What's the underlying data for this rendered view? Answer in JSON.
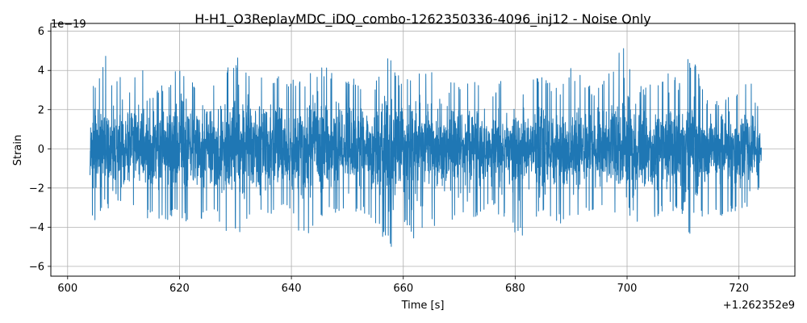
{
  "chart_data": {
    "type": "line",
    "title": "H-H1_O3ReplayMDC_iDQ_combo-1262350336-4096_inj12 - Noise Only",
    "xlabel": "Time [s]",
    "ylabel": "Strain",
    "x_offset_label": "+1.262352e9",
    "y_exponent_label": "1e−19",
    "xlim": [
      597,
      730
    ],
    "ylim": [
      -6.5,
      6.4
    ],
    "xticks": [
      600,
      620,
      640,
      660,
      680,
      700,
      720
    ],
    "xtick_labels": [
      "600",
      "620",
      "640",
      "660",
      "680",
      "700",
      "720"
    ],
    "yticks": [
      -6,
      -4,
      -2,
      0,
      2,
      4,
      6
    ],
    "ytick_labels": [
      "−6",
      "−4",
      "−2",
      "0",
      "2",
      "4",
      "6"
    ],
    "grid": true,
    "line_color": "#1f77b4",
    "x_range": [
      604,
      724
    ],
    "envelope": {
      "x": [
        604,
        604.5,
        605,
        606,
        606.8,
        607.5,
        609,
        611,
        613,
        614,
        617,
        620,
        622,
        626,
        628,
        630,
        633,
        636,
        638,
        640,
        642,
        646,
        650,
        654,
        656,
        657.4,
        658,
        660,
        662,
        665,
        666,
        669,
        670,
        673,
        676,
        679,
        680,
        682,
        684,
        688,
        690,
        694,
        697,
        699,
        701,
        703,
        706,
        708,
        710,
        711,
        712,
        714,
        717,
        720,
        722,
        723,
        724
      ],
      "upper": [
        1.6,
        3.2,
        3.7,
        4.4,
        5.4,
        3.4,
        4.0,
        3.2,
        5.1,
        2.6,
        3.3,
        4.3,
        3.4,
        3.7,
        3.9,
        4.8,
        3.7,
        3.7,
        3.7,
        3.6,
        3.6,
        4.3,
        3.8,
        3.1,
        3.9,
        4.9,
        4.5,
        3.2,
        4.2,
        4.4,
        2.3,
        3.7,
        3.3,
        3.8,
        3.1,
        4.0,
        3.3,
        3.2,
        3.8,
        3.1,
        4.2,
        3.1,
        4.1,
        5.5,
        3.6,
        3.2,
        3.5,
        4.1,
        3.0,
        4.8,
        4.6,
        2.7,
        2.4,
        3.1,
        3.8,
        2.6,
        1.6
      ],
      "lower": [
        -2.6,
        -3.7,
        -3.9,
        -3.1,
        -2.6,
        -3.4,
        -3.0,
        -3.2,
        -2.8,
        -3.6,
        -3.7,
        -3.5,
        -3.9,
        -3.2,
        -4.3,
        -4.5,
        -3.5,
        -3.5,
        -3.2,
        -3.1,
        -5.0,
        -3.2,
        -3.3,
        -3.5,
        -4.4,
        -5.0,
        -5.9,
        -4.1,
        -4.6,
        -4.1,
        -4.3,
        -3.6,
        -3.7,
        -3.7,
        -3.0,
        -4.0,
        -4.3,
        -4.7,
        -3.4,
        -3.8,
        -3.7,
        -3.1,
        -3.3,
        -3.6,
        -3.5,
        -4.0,
        -3.3,
        -3.1,
        -3.6,
        -5.0,
        -4.2,
        -3.3,
        -3.6,
        -3.1,
        -2.9,
        -2.5,
        -1.6
      ]
    }
  }
}
